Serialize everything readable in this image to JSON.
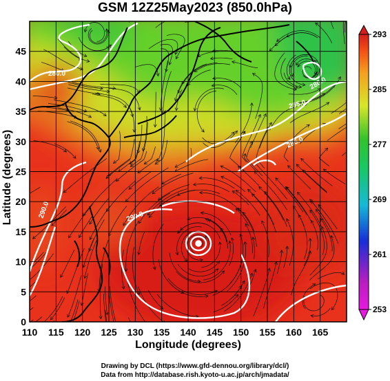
{
  "title": "GSM 12Z25May2023 (850.0hPa)",
  "x_axis": {
    "label": "Longitude (degrees)",
    "ticks": [
      "110",
      "115",
      "120",
      "125",
      "130",
      "135",
      "140",
      "145",
      "150",
      "155",
      "160",
      "165"
    ]
  },
  "y_axis": {
    "label": "Latitude  (degrees)",
    "ticks": [
      "0",
      "5",
      "10",
      "15",
      "20",
      "25",
      "30",
      "35",
      "40",
      "45"
    ]
  },
  "colorbar": {
    "ticks": [
      "293",
      "285",
      "277",
      "269",
      "261",
      "253"
    ],
    "colors": [
      "#d21e1e",
      "#f55014",
      "#f5a020",
      "#d7e628",
      "#34c22c",
      "#16b9d6",
      "#1630d8",
      "#b81ec0",
      "#e61ae0"
    ]
  },
  "contour_labels": [
    "280.0",
    "280.0",
    "285.0",
    "285.0",
    "290.0",
    "290.0"
  ],
  "credits": {
    "line1": "Drawing by DCL (https://www.gfd-dennou.org/library/dcl/)",
    "line2": "Data from http://database.rish.kyoto-u.ac.jp/arch/jmadata/"
  }
}
